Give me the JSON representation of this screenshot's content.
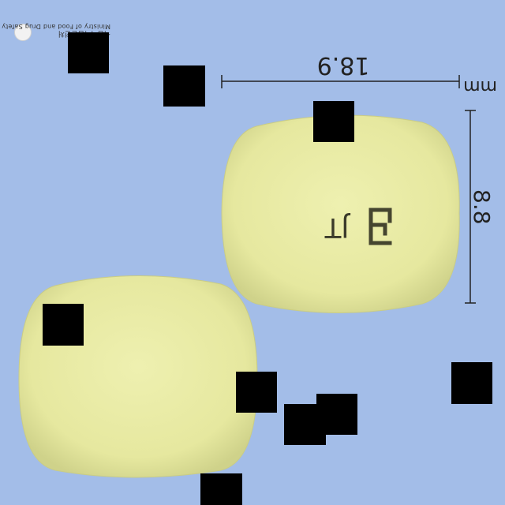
{
  "logo": {
    "emblem": "mfds-emblem-icon",
    "name_ko": "식품의약품안전처",
    "name_en": "Ministry of Food and Drug Safety"
  },
  "dimensions": {
    "length": "18.9",
    "width": "8.8",
    "unit": "mm"
  },
  "imprint": {
    "text": "JT",
    "symbol": "company-logo-symbol"
  },
  "colors": {
    "background": "#a3bde8",
    "tablet": "#e8eaa2",
    "ink": "#222222",
    "redaction": "#000000"
  }
}
